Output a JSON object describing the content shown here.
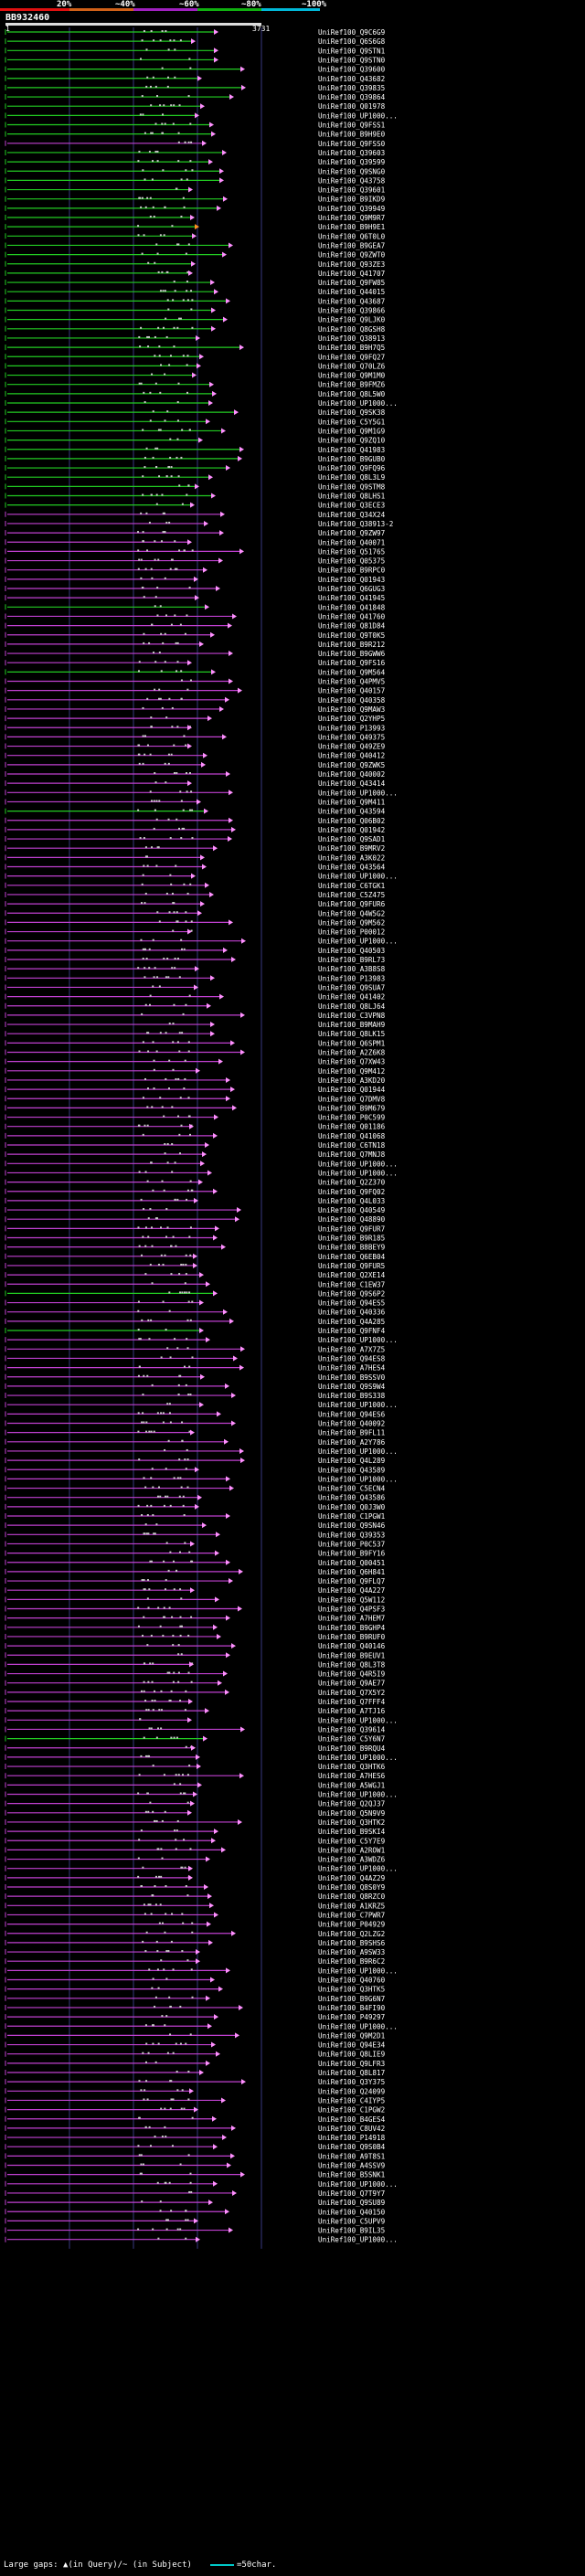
{
  "legend": {
    "labels": [
      "20%",
      "~40%",
      "~60%",
      "~80%",
      "~100%"
    ],
    "colors": [
      "#e01010",
      "#d06018",
      "#a020c0",
      "#10b010",
      "#00b8d8"
    ]
  },
  "query": {
    "id": "BB932460",
    "start": "1",
    "end": "3731"
  },
  "footer": {
    "text": "Large gaps: ▲(in Query)/~ (in Subject)",
    "key": "=50char."
  },
  "colors": {
    "green": "#22cc22",
    "violet": "#c040d0",
    "pink": "#ff90ff",
    "orange": "#ff9020",
    "gap": "#c8c8c8",
    "grid": "#383880"
  },
  "hits": [
    {
      "label": "UniRef100_Q9C6G9",
      "color": "green"
    },
    {
      "label": "UniRef100_Q6S6G8",
      "color": "green"
    },
    {
      "label": "UniRef100_Q9STN1",
      "color": "green"
    },
    {
      "label": "UniRef100_Q9STN0",
      "color": "green"
    },
    {
      "label": "UniRef100_Q39600",
      "color": "green"
    },
    {
      "label": "UniRef100_Q43682",
      "color": "green"
    },
    {
      "label": "UniRef100_Q39835",
      "color": "green"
    },
    {
      "label": "UniRef100_Q39864",
      "color": "green"
    },
    {
      "label": "UniRef100_Q01978",
      "color": "green"
    },
    {
      "label": "UniRef100_UP1000...",
      "color": "green"
    },
    {
      "label": "UniRef100_Q9FSS1",
      "color": "green"
    },
    {
      "label": "UniRef100_B9H9E0",
      "color": "green"
    },
    {
      "label": "UniRef100_Q9FSS0",
      "color": "violet"
    },
    {
      "label": "UniRef100_Q39603",
      "color": "green"
    },
    {
      "label": "UniRef100_Q39599",
      "color": "green"
    },
    {
      "label": "UniRef100_Q9SNG0",
      "color": "green"
    },
    {
      "label": "UniRef100_Q43758",
      "color": "green"
    },
    {
      "label": "UniRef100_Q39601",
      "color": "green"
    },
    {
      "label": "UniRef100_B9IKD9",
      "color": "green"
    },
    {
      "label": "UniRef100_Q39949",
      "color": "green"
    },
    {
      "label": "UniRef100_Q9M9R7",
      "color": "green"
    },
    {
      "label": "UniRef100_B9H9E1",
      "color": "green"
    },
    {
      "label": "UniRef100_Q6T0L0",
      "color": "green"
    },
    {
      "label": "UniRef100_B9GEA7",
      "color": "green"
    },
    {
      "label": "UniRef100_Q9ZWT0",
      "color": "green"
    },
    {
      "label": "UniRef100_Q93ZE3",
      "color": "green"
    },
    {
      "label": "UniRef100_Q41707",
      "color": "green"
    },
    {
      "label": "UniRef100_Q9FW85",
      "color": "green"
    },
    {
      "label": "UniRef100_Q44015",
      "color": "green"
    },
    {
      "label": "UniRef100_Q43687",
      "color": "green"
    },
    {
      "label": "UniRef100_Q39866",
      "color": "green"
    },
    {
      "label": "UniRef100_Q9LJK0",
      "color": "green"
    },
    {
      "label": "UniRef100_Q8GSH8",
      "color": "green"
    },
    {
      "label": "UniRef100_Q38913",
      "color": "green"
    },
    {
      "label": "UniRef100_B9H7Q5",
      "color": "green"
    },
    {
      "label": "UniRef100_Q9FQ27",
      "color": "green"
    },
    {
      "label": "UniRef100_Q70LZ6",
      "color": "green"
    },
    {
      "label": "UniRef100_Q9M1M0",
      "color": "green"
    },
    {
      "label": "UniRef100_B9FMZ6",
      "color": "green"
    },
    {
      "label": "UniRef100_Q8L5W0",
      "color": "green"
    },
    {
      "label": "UniRef100_UP1000...",
      "color": "green"
    },
    {
      "label": "UniRef100_Q9SK38",
      "color": "green"
    },
    {
      "label": "UniRef100_C5Y5G1",
      "color": "green"
    },
    {
      "label": "UniRef100_Q9M1G9",
      "color": "green"
    },
    {
      "label": "UniRef100_Q9ZQ10",
      "color": "green"
    },
    {
      "label": "UniRef100_Q41983",
      "color": "green"
    },
    {
      "label": "UniRef100_B9GUB0",
      "color": "green"
    },
    {
      "label": "UniRef100_Q9FQ96",
      "color": "green"
    },
    {
      "label": "UniRef100_Q8L3L9",
      "color": "green"
    },
    {
      "label": "UniRef100_Q9STM8",
      "color": "green"
    },
    {
      "label": "UniRef100_Q8LHS1",
      "color": "green"
    },
    {
      "label": "UniRef100_Q3ECE3",
      "color": "green"
    },
    {
      "label": "UniRef100_Q34X24",
      "color": "violet"
    },
    {
      "label": "UniRef100_Q38913-2",
      "color": "violet"
    },
    {
      "label": "UniRef100_Q9ZW97",
      "color": "violet"
    },
    {
      "label": "UniRef100_Q40071",
      "color": "violet"
    },
    {
      "label": "UniRef100_Q51765",
      "color": "violet"
    },
    {
      "label": "UniRef100_Q05375",
      "color": "violet"
    },
    {
      "label": "UniRef100_B9RPC0",
      "color": "violet"
    },
    {
      "label": "UniRef100_Q01943",
      "color": "violet"
    },
    {
      "label": "UniRef100_Q6GUG3",
      "color": "violet"
    },
    {
      "label": "UniRef100_Q41945",
      "color": "violet"
    },
    {
      "label": "UniRef100_Q41848",
      "color": "green"
    },
    {
      "label": "UniRef100_Q41760",
      "color": "violet"
    },
    {
      "label": "UniRef100_Q81D84",
      "color": "violet"
    },
    {
      "label": "UniRef100_Q9T0K5",
      "color": "violet"
    },
    {
      "label": "UniRef100_B9R212",
      "color": "violet"
    },
    {
      "label": "UniRef100_B9GWW6",
      "color": "violet"
    },
    {
      "label": "UniRef100_Q9FS16",
      "color": "violet"
    },
    {
      "label": "UniRef100_Q9M564",
      "color": "green"
    },
    {
      "label": "UniRef100_Q4PMV5",
      "color": "violet"
    },
    {
      "label": "UniRef100_Q40157",
      "color": "violet"
    },
    {
      "label": "UniRef100_Q40358",
      "color": "violet"
    },
    {
      "label": "UniRef100_Q9MAW3",
      "color": "violet"
    },
    {
      "label": "UniRef100_Q2YHP5",
      "color": "violet"
    },
    {
      "label": "UniRef100_P13993",
      "color": "violet"
    },
    {
      "label": "UniRef100_Q49375",
      "color": "violet"
    },
    {
      "label": "UniRef100_Q49ZE9",
      "color": "violet"
    },
    {
      "label": "UniRef100_Q40412",
      "color": "violet"
    },
    {
      "label": "UniRef100_Q9ZWK5",
      "color": "violet"
    },
    {
      "label": "UniRef100_Q40002",
      "color": "violet"
    },
    {
      "label": "UniRef100_Q43414",
      "color": "violet"
    },
    {
      "label": "UniRef100_UP1000...",
      "color": "violet"
    },
    {
      "label": "UniRef100_Q9M411",
      "color": "violet"
    },
    {
      "label": "UniRef100_Q43594",
      "color": "green"
    },
    {
      "label": "UniRef100_Q06B02",
      "color": "violet"
    },
    {
      "label": "UniRef100_Q01942",
      "color": "violet"
    },
    {
      "label": "UniRef100_Q9SAD1",
      "color": "violet"
    },
    {
      "label": "UniRef100_B9MRV2",
      "color": "violet"
    },
    {
      "label": "UniRef100_A3K022",
      "color": "violet"
    },
    {
      "label": "UniRef100_Q43564",
      "color": "violet"
    },
    {
      "label": "UniRef100_UP1000...",
      "color": "violet"
    },
    {
      "label": "UniRef100_C6TGK1",
      "color": "violet"
    },
    {
      "label": "UniRef100_C5Z475",
      "color": "violet"
    },
    {
      "label": "UniRef100_Q9FUR6",
      "color": "violet"
    },
    {
      "label": "UniRef100_Q4W5G2",
      "color": "violet"
    },
    {
      "label": "UniRef100_Q9M562",
      "color": "violet"
    },
    {
      "label": "UniRef100_P00012",
      "color": "violet"
    },
    {
      "label": "UniRef100_UP1000...",
      "color": "violet"
    },
    {
      "label": "UniRef100_Q40503",
      "color": "violet"
    },
    {
      "label": "UniRef100_B9RL73",
      "color": "violet"
    },
    {
      "label": "UniRef100_A3B8S8",
      "color": "violet"
    },
    {
      "label": "UniRef100_P13983",
      "color": "violet"
    },
    {
      "label": "UniRef100_Q9SUA7",
      "color": "violet"
    },
    {
      "label": "UniRef100_Q41402",
      "color": "violet"
    },
    {
      "label": "UniRef100_Q8LJ64",
      "color": "violet"
    },
    {
      "label": "UniRef100_C3VPN8",
      "color": "violet"
    },
    {
      "label": "UniRef100_B9MAH9",
      "color": "violet"
    },
    {
      "label": "UniRef100_Q8LK15",
      "color": "violet"
    },
    {
      "label": "UniRef100_Q6SPM1",
      "color": "violet"
    },
    {
      "label": "UniRef100_A2Z6K8",
      "color": "violet"
    },
    {
      "label": "UniRef100_Q7XW43",
      "color": "violet"
    },
    {
      "label": "UniRef100_Q9M412",
      "color": "violet"
    },
    {
      "label": "UniRef100_A3KD20",
      "color": "violet"
    },
    {
      "label": "UniRef100_Q01944",
      "color": "violet"
    },
    {
      "label": "UniRef100_Q7DMV8",
      "color": "violet"
    },
    {
      "label": "UniRef100_B9M679",
      "color": "violet"
    },
    {
      "label": "UniRef100_P0C599",
      "color": "violet"
    },
    {
      "label": "UniRef100_Q01186",
      "color": "violet"
    },
    {
      "label": "UniRef100_Q41068",
      "color": "violet"
    },
    {
      "label": "UniRef100_C6TN18",
      "color": "violet"
    },
    {
      "label": "UniRef100_Q7MNJ8",
      "color": "violet"
    },
    {
      "label": "UniRef100_UP1000...",
      "color": "violet"
    },
    {
      "label": "UniRef100_UP1000...",
      "color": "violet"
    },
    {
      "label": "UniRef100_Q2Z370",
      "color": "violet"
    },
    {
      "label": "UniRef100_Q9FQ02",
      "color": "violet"
    },
    {
      "label": "UniRef100_Q4L033",
      "color": "violet"
    },
    {
      "label": "UniRef100_Q40549",
      "color": "violet"
    },
    {
      "label": "UniRef100_Q48890",
      "color": "violet"
    },
    {
      "label": "UniRef100_Q9FUR7",
      "color": "violet"
    },
    {
      "label": "UniRef100_B9R185",
      "color": "violet"
    },
    {
      "label": "UniRef100_B8BEY9",
      "color": "violet"
    },
    {
      "label": "UniRef100_Q6EB04",
      "color": "violet"
    },
    {
      "label": "UniRef100_Q9FUR5",
      "color": "violet"
    },
    {
      "label": "UniRef100_Q2XE14",
      "color": "violet"
    },
    {
      "label": "UniRef100_C1EW37",
      "color": "violet"
    },
    {
      "label": "UniRef100_Q9S6P2",
      "color": "green"
    },
    {
      "label": "UniRef100_Q94ES5",
      "color": "violet"
    },
    {
      "label": "UniRef100_Q40336",
      "color": "violet"
    },
    {
      "label": "UniRef100_Q4A285",
      "color": "violet"
    },
    {
      "label": "UniRef100_Q9FNF4",
      "color": "green"
    },
    {
      "label": "UniRef100_UP1000...",
      "color": "violet"
    },
    {
      "label": "UniRef100_A7X7Z5",
      "color": "violet"
    },
    {
      "label": "UniRef100_Q94ES8",
      "color": "violet"
    },
    {
      "label": "UniRef100_A7HES4",
      "color": "violet"
    },
    {
      "label": "UniRef100_B9SSV0",
      "color": "violet"
    },
    {
      "label": "UniRef100_Q9S9W4",
      "color": "violet"
    },
    {
      "label": "UniRef100_B9S338",
      "color": "violet"
    },
    {
      "label": "UniRef100_UP1000...",
      "color": "violet"
    },
    {
      "label": "UniRef100_Q94ES6",
      "color": "violet"
    },
    {
      "label": "UniRef100_Q40092",
      "color": "violet"
    },
    {
      "label": "UniRef100_B9FL11",
      "color": "violet"
    },
    {
      "label": "UniRef100_A2Y786",
      "color": "violet"
    },
    {
      "label": "UniRef100_UP1000...",
      "color": "violet"
    },
    {
      "label": "UniRef100_Q4L289",
      "color": "violet"
    },
    {
      "label": "UniRef100_Q43589",
      "color": "violet"
    },
    {
      "label": "UniRef100_UP1000...",
      "color": "violet"
    },
    {
      "label": "UniRef100_C5ECN4",
      "color": "violet"
    },
    {
      "label": "UniRef100_Q43586",
      "color": "violet"
    },
    {
      "label": "UniRef100_Q0J3W0",
      "color": "violet"
    },
    {
      "label": "UniRef100_C1PGW1",
      "color": "violet"
    },
    {
      "label": "UniRef100_Q9SN46",
      "color": "violet"
    },
    {
      "label": "UniRef100_Q39353",
      "color": "violet"
    },
    {
      "label": "UniRef100_P0C537",
      "color": "violet"
    },
    {
      "label": "UniRef100_B9FY16",
      "color": "violet"
    },
    {
      "label": "UniRef100_Q00451",
      "color": "violet"
    },
    {
      "label": "UniRef100_Q6H841",
      "color": "violet"
    },
    {
      "label": "UniRef100_Q9FLQ7",
      "color": "violet"
    },
    {
      "label": "UniRef100_Q4A227",
      "color": "violet"
    },
    {
      "label": "UniRef100_Q5W112",
      "color": "violet"
    },
    {
      "label": "UniRef100_Q4PSF3",
      "color": "violet"
    },
    {
      "label": "UniRef100_A7HEM7",
      "color": "violet"
    },
    {
      "label": "UniRef100_B9GHP4",
      "color": "violet"
    },
    {
      "label": "UniRef100_B9RUF0",
      "color": "violet"
    },
    {
      "label": "UniRef100_Q40146",
      "color": "violet"
    },
    {
      "label": "UniRef100_B9EUV1",
      "color": "violet"
    },
    {
      "label": "UniRef100_Q8L3T8",
      "color": "violet"
    },
    {
      "label": "UniRef100_Q4R5I9",
      "color": "violet"
    },
    {
      "label": "UniRef100_Q9AE77",
      "color": "violet"
    },
    {
      "label": "UniRef100_Q7X5Y2",
      "color": "violet"
    },
    {
      "label": "UniRef100_Q7FFF4",
      "color": "violet"
    },
    {
      "label": "UniRef100_A7TJ16",
      "color": "violet"
    },
    {
      "label": "UniRef100_UP1000...",
      "color": "violet"
    },
    {
      "label": "UniRef100_Q39614",
      "color": "violet"
    },
    {
      "label": "UniRef100_C5Y6N7",
      "color": "green"
    },
    {
      "label": "UniRef100_B9RQU4",
      "color": "violet"
    },
    {
      "label": "UniRef100_UP1000...",
      "color": "violet"
    },
    {
      "label": "UniRef100_Q3HTK6",
      "color": "violet"
    },
    {
      "label": "UniRef100_A7HES6",
      "color": "violet"
    },
    {
      "label": "UniRef100_A5WGJ1",
      "color": "violet"
    },
    {
      "label": "UniRef100_UP1000...",
      "color": "violet"
    },
    {
      "label": "UniRef100_Q2QJ37",
      "color": "violet"
    },
    {
      "label": "UniRef100_Q5N9V9",
      "color": "violet"
    },
    {
      "label": "UniRef100_Q3HTK2",
      "color": "violet"
    },
    {
      "label": "UniRef100_B9SKI4",
      "color": "violet"
    },
    {
      "label": "UniRef100_C5Y7E9",
      "color": "violet"
    },
    {
      "label": "UniRef100_A2ROW1",
      "color": "violet"
    },
    {
      "label": "UniRef100_A3WDZ6",
      "color": "violet"
    },
    {
      "label": "UniRef100_UP1000...",
      "color": "violet"
    },
    {
      "label": "UniRef100_Q4AZ29",
      "color": "violet"
    },
    {
      "label": "UniRef100_Q8S0Y9",
      "color": "violet"
    },
    {
      "label": "UniRef100_Q8RZC0",
      "color": "violet"
    },
    {
      "label": "UniRef100_A1KRZ5",
      "color": "violet"
    },
    {
      "label": "UniRef100_C7PWR7",
      "color": "violet"
    },
    {
      "label": "UniRef100_P04929",
      "color": "violet"
    },
    {
      "label": "UniRef100_Q2LZG2",
      "color": "violet"
    },
    {
      "label": "UniRef100_B9SHS6",
      "color": "violet"
    },
    {
      "label": "UniRef100_A9SW33",
      "color": "violet"
    },
    {
      "label": "UniRef100_B9R6C2",
      "color": "violet"
    },
    {
      "label": "UniRef100_UP1000...",
      "color": "violet"
    },
    {
      "label": "UniRef100_Q40760",
      "color": "violet"
    },
    {
      "label": "UniRef100_Q3HTK5",
      "color": "violet"
    },
    {
      "label": "UniRef100_B9G6N7",
      "color": "violet"
    },
    {
      "label": "UniRef100_B4FI90",
      "color": "violet"
    },
    {
      "label": "UniRef100_P49297",
      "color": "violet"
    },
    {
      "label": "UniRef100_UP1000...",
      "color": "violet"
    },
    {
      "label": "UniRef100_Q9M2D1",
      "color": "violet"
    },
    {
      "label": "UniRef100_Q94E34",
      "color": "violet"
    },
    {
      "label": "UniRef100_Q8LIE9",
      "color": "violet"
    },
    {
      "label": "UniRef100_Q9LFR3",
      "color": "violet"
    },
    {
      "label": "UniRef100_Q8L817",
      "color": "violet"
    },
    {
      "label": "UniRef100_Q3Y375",
      "color": "violet"
    },
    {
      "label": "UniRef100_Q24099",
      "color": "violet"
    },
    {
      "label": "UniRef100_C4IYP5",
      "color": "violet"
    },
    {
      "label": "UniRef100_C1PGW2",
      "color": "violet"
    },
    {
      "label": "UniRef100_B4GES4",
      "color": "violet"
    },
    {
      "label": "UniRef100_C8UV42",
      "color": "violet"
    },
    {
      "label": "UniRef100_P14918",
      "color": "violet"
    },
    {
      "label": "UniRef100_Q9S0B4",
      "color": "violet"
    },
    {
      "label": "UniRef100_A9T8S1",
      "color": "violet"
    },
    {
      "label": "UniRef100_A4SSV9",
      "color": "violet"
    },
    {
      "label": "UniRef100_B5SNK1",
      "color": "violet"
    },
    {
      "label": "UniRef100_UP1000...",
      "color": "violet"
    },
    {
      "label": "UniRef100_Q7T9Y7",
      "color": "violet"
    },
    {
      "label": "UniRef100_Q9SU89",
      "color": "violet"
    },
    {
      "label": "UniRef100_Q40150",
      "color": "violet"
    },
    {
      "label": "UniRef100_C5UPV9",
      "color": "violet"
    },
    {
      "label": "UniRef100_B9IL35",
      "color": "violet"
    },
    {
      "label": "UniRef100_UP1000...",
      "color": "violet"
    }
  ]
}
